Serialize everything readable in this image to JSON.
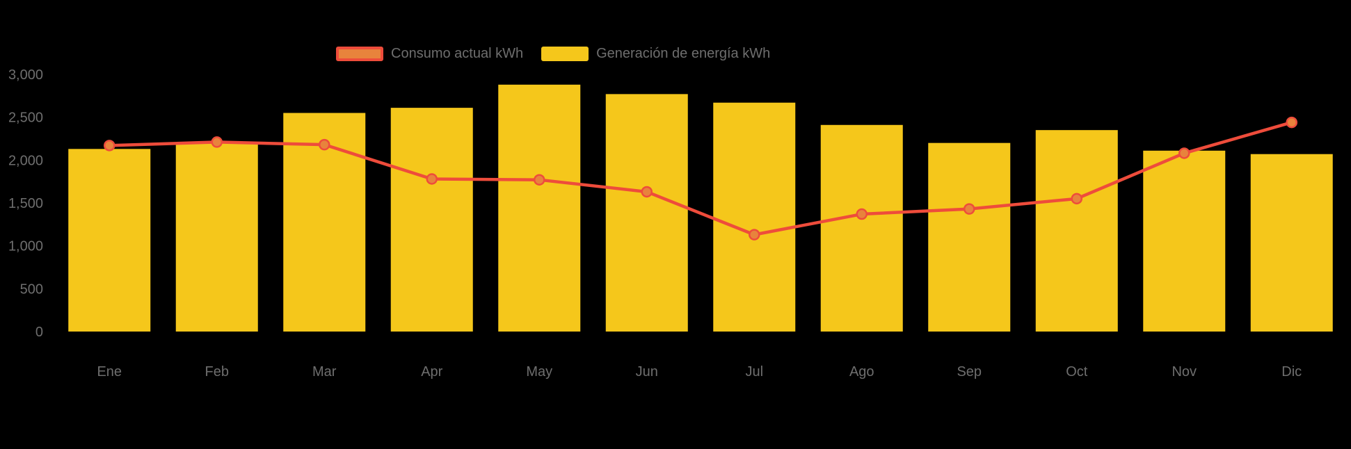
{
  "colors": {
    "background": "#000000",
    "bar": "#F5C71B",
    "line": "#EE4C3B",
    "marker_fill": "#E8833C",
    "axis_text": "#6E6E6E"
  },
  "legend": {
    "items": [
      {
        "label": "Consumo actual kWh",
        "type": "line"
      },
      {
        "label": "Generación de energía kWh",
        "type": "bar"
      }
    ]
  },
  "chart_data": {
    "type": "bar+line",
    "title": "",
    "xlabel": "",
    "ylabel": "",
    "categories": [
      "Ene",
      "Feb",
      "Mar",
      "Apr",
      "May",
      "Jun",
      "Jul",
      "Ago",
      "Sep",
      "Oct",
      "Nov",
      "Dic"
    ],
    "series": [
      {
        "name": "Consumo actual kWh",
        "type": "line",
        "color": "#EE4C3B",
        "marker_fill": "#E8833C",
        "values": [
          2170,
          2210,
          2180,
          1780,
          1770,
          1630,
          1130,
          1370,
          1430,
          1550,
          2080,
          2440
        ]
      },
      {
        "name": "Generación de energía kWh",
        "type": "bar",
        "color": "#F5C71B",
        "values": [
          2130,
          2200,
          2550,
          2610,
          2880,
          2770,
          2670,
          2410,
          2200,
          2350,
          2110,
          2070
        ]
      }
    ],
    "ylim": [
      0,
      3000
    ],
    "yticks": [
      0,
      500,
      1000,
      1500,
      2000,
      2500,
      3000
    ],
    "ytick_labels": [
      "0",
      "500",
      "1,000",
      "1,500",
      "2,000",
      "2,500",
      "3,000"
    ],
    "grid": false,
    "legend_position": "top"
  }
}
